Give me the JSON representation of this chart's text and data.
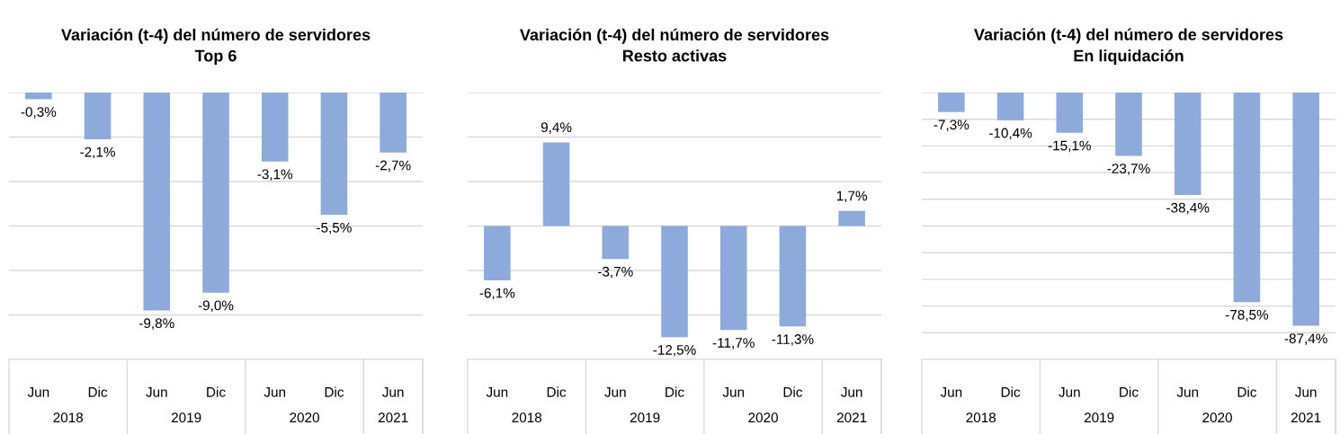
{
  "chart_data": [
    {
      "type": "bar",
      "title": "Variación (t-4) del número de servidores",
      "subtitle": "Top 6",
      "categories": [
        "Jun",
        "Dic",
        "Jun",
        "Dic",
        "Jun",
        "Dic",
        "Jun"
      ],
      "annotations": [
        "2018",
        "2019",
        "2020",
        "2021"
      ],
      "values": [
        -0.3,
        -2.1,
        -9.8,
        -9.0,
        -3.1,
        -5.5,
        -2.7
      ],
      "value_labels": [
        "-0,3%",
        "-2,1%",
        "-9,8%",
        "-9,0%",
        "-3,1%",
        "-5,5%",
        "-2,7%"
      ],
      "color": "#8eaadb",
      "ylim": [
        -12,
        0
      ],
      "yticks": [
        {
          "value": -12,
          "label": null
        },
        {
          "value": -10,
          "label": null
        },
        {
          "value": -8,
          "label": null
        },
        {
          "value": -6,
          "label": null
        },
        {
          "value": -4,
          "label": null
        },
        {
          "value": -2,
          "label": null
        },
        {
          "value": 0,
          "label": null
        }
      ],
      "grid": "y",
      "tick_labels": "x"
    },
    {
      "type": "bar",
      "title": "Variación (t-4) del número de servidores",
      "subtitle": "Resto activas",
      "categories": [
        "Jun",
        "Dic",
        "Jun",
        "Dic",
        "Jun",
        "Dic",
        "Jun"
      ],
      "annotations": [
        "2018",
        "2019",
        "2020",
        "2021"
      ],
      "values": [
        -6.1,
        9.4,
        -3.7,
        -12.5,
        -11.7,
        -11.3,
        1.7
      ],
      "value_labels": [
        "-6,1%",
        "9,4%",
        "-3,7%",
        "-12,5%",
        "-11,7%",
        "-11,3%",
        "1,7%"
      ],
      "color": "#8eaadb",
      "ylim": [
        -15,
        15
      ],
      "yticks": [
        {
          "value": -15,
          "label": null
        },
        {
          "value": -10,
          "label": null
        },
        {
          "value": -5,
          "label": null
        },
        {
          "value": 0,
          "label": null
        },
        {
          "value": 5,
          "label": null
        },
        {
          "value": 10,
          "label": null
        },
        {
          "value": 15,
          "label": null
        }
      ],
      "grid": "y",
      "tick_labels": "x"
    },
    {
      "type": "bar",
      "title": "Variación (t-4) del número de servidores",
      "subtitle": "En liquidación",
      "categories": [
        "Jun",
        "Dic",
        "Jun",
        "Dic",
        "Jun",
        "Dic",
        "Jun"
      ],
      "annotations": [
        "2018",
        "2019",
        "2020",
        "2021"
      ],
      "values": [
        -7.3,
        -10.4,
        -15.1,
        -23.7,
        -38.4,
        -78.5,
        -87.4
      ],
      "value_labels": [
        "-7,3%",
        "-10,4%",
        "-15,1%",
        "-23,7%",
        "-38,4%",
        "-78,5%",
        "-87,4%"
      ],
      "color": "#8eaadb",
      "ylim": [
        -100,
        0
      ],
      "yticks": [
        {
          "value": -100,
          "label": null
        },
        {
          "value": -90,
          "label": null
        },
        {
          "value": -80,
          "label": null
        },
        {
          "value": -70,
          "label": null
        },
        {
          "value": -60,
          "label": null
        },
        {
          "value": -50,
          "label": null
        },
        {
          "value": -40,
          "label": null
        },
        {
          "value": -30,
          "label": null
        },
        {
          "value": -20,
          "label": null
        },
        {
          "value": -10,
          "label": null
        },
        {
          "value": 0,
          "label": null
        }
      ],
      "grid": "y",
      "tick_labels": "x"
    }
  ]
}
